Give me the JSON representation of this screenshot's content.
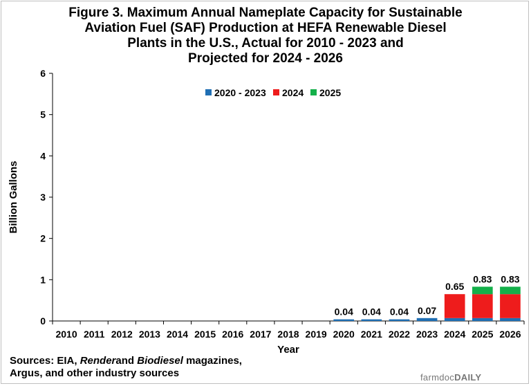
{
  "chart_data": {
    "type": "bar",
    "stacked": true,
    "title_lines": [
      "Figure 3. Maximum Annual Nameplate Capacity for Sustainable",
      "Aviation Fuel (SAF) Production at HEFA Renewable Diesel",
      "Plants in the U.S., Actual for 2010 - 2023 and",
      "Projected for 2024 - 2026"
    ],
    "xlabel": "Year",
    "ylabel": "Billion Gallons",
    "ylim": [
      0,
      6
    ],
    "yticks": [
      "0",
      "1",
      "2",
      "3",
      "4",
      "5",
      "6"
    ],
    "grid": false,
    "legend_position": "top-center",
    "categories": [
      "2010",
      "2011",
      "2012",
      "2013",
      "2014",
      "2015",
      "2016",
      "2017",
      "2018",
      "2019",
      "2020",
      "2021",
      "2022",
      "2023",
      "2024",
      "2025",
      "2026"
    ],
    "series": [
      {
        "name": "2020 - 2023",
        "color": "#1f6fb4",
        "values": [
          0,
          0,
          0,
          0,
          0,
          0,
          0,
          0,
          0,
          0,
          0.04,
          0.04,
          0.04,
          0.07,
          0.07,
          0.07,
          0.07
        ]
      },
      {
        "name": "2024",
        "color": "#ee1c1c",
        "values": [
          0,
          0,
          0,
          0,
          0,
          0,
          0,
          0,
          0,
          0,
          0,
          0,
          0,
          0,
          0.58,
          0.58,
          0.58
        ]
      },
      {
        "name": "2025",
        "color": "#14b04a",
        "values": [
          0,
          0,
          0,
          0,
          0,
          0,
          0,
          0,
          0,
          0,
          0,
          0,
          0,
          0,
          0,
          0.18,
          0.18
        ]
      }
    ],
    "totals": [
      "",
      "",
      "",
      "",
      "",
      "",
      "",
      "",
      "",
      "",
      "0.04",
      "0.04",
      "0.04",
      "0.07",
      "0.65",
      "0.83",
      "0.83"
    ]
  },
  "sources": {
    "prefix": "Sources: EIA, ",
    "render": "Render",
    "and": "and ",
    "biodiesel": "Biodiesel",
    "rest": " magazines,",
    "line2": "Argus, and other industry sources"
  },
  "logo": {
    "part1": "farmdoc",
    "part2": "DAILY"
  }
}
